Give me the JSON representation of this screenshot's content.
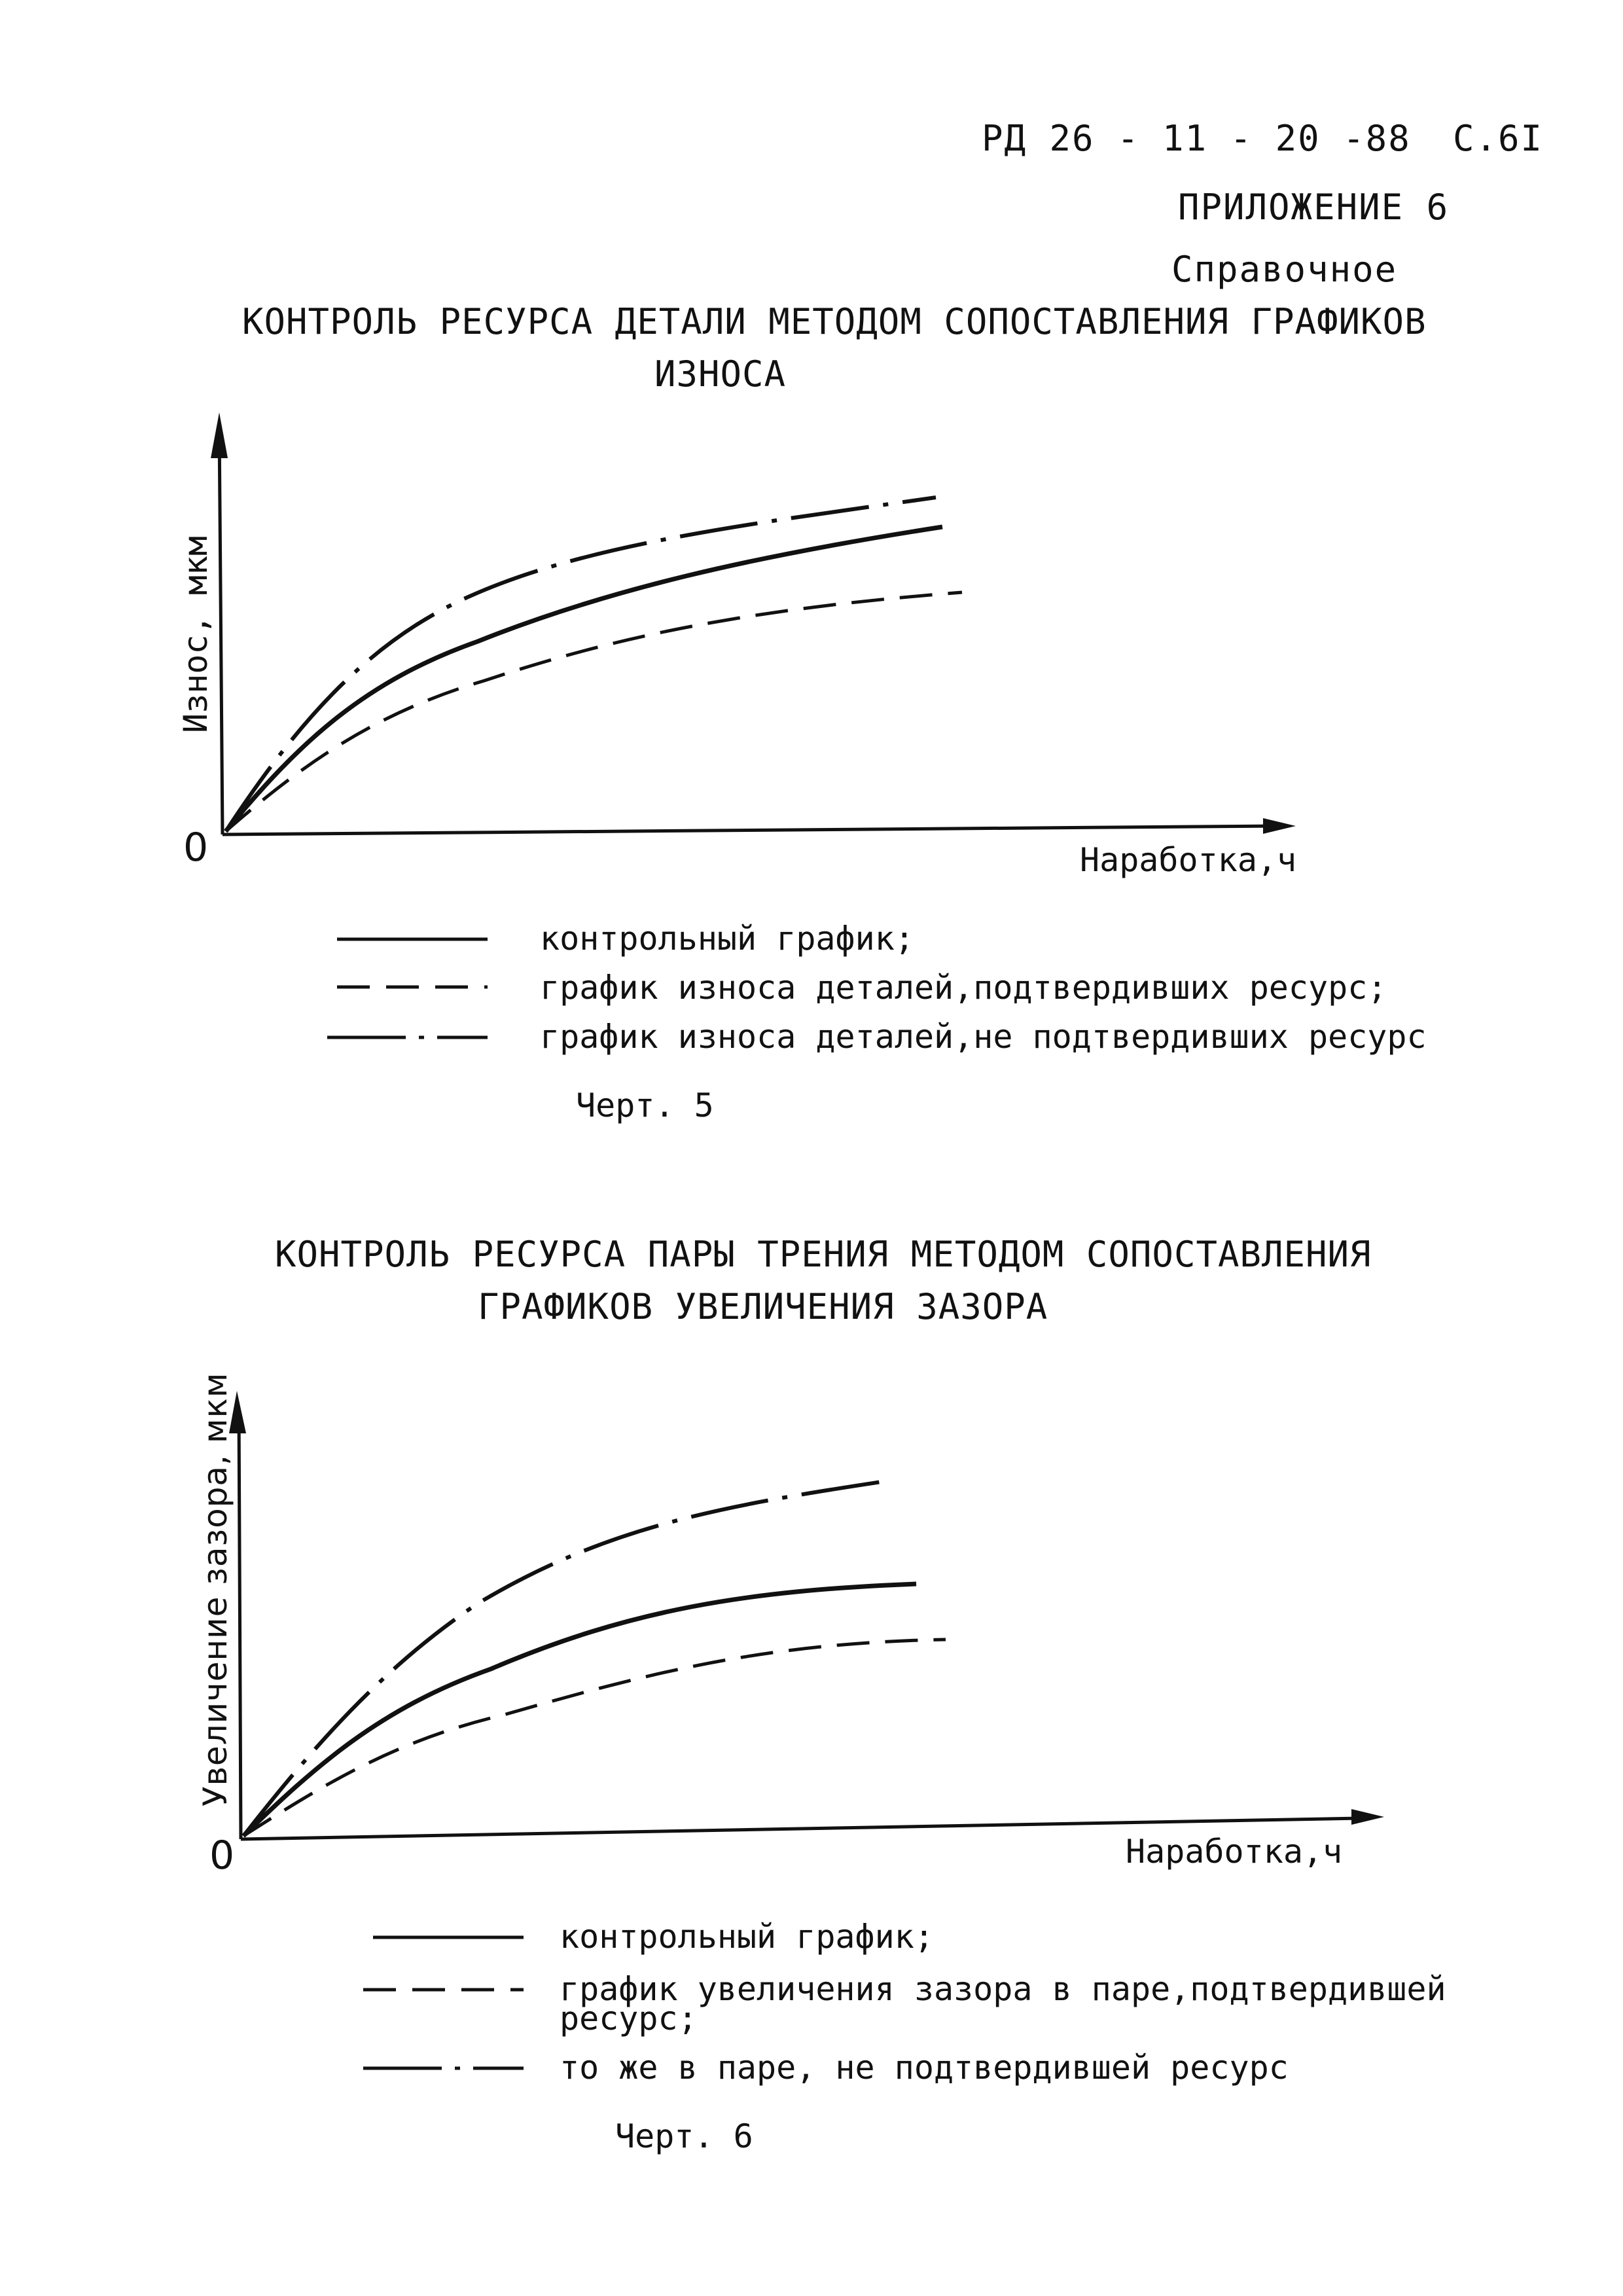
{
  "header": {
    "doc_code": "РД 26 - 11 - 20 -88",
    "page": "С.6I",
    "appendix": "ПРИЛОЖЕНИЕ 6",
    "type": "Справочное"
  },
  "chart1": {
    "title_line1": "КОНТРОЛЬ РЕСУРСА ДЕТАЛИ МЕТОДОМ СОПОСТАВЛЕНИЯ ГРАФИКОВ",
    "title_line2": "ИЗНОСА",
    "ylabel": "Износ, мкм",
    "xlabel": "Наработка,ч",
    "origin": "0",
    "legend": [
      {
        "style": "solid",
        "text": "контрольный график;"
      },
      {
        "style": "dashed",
        "text": "график износа деталей,подтвердивших ресурс;"
      },
      {
        "style": "dashdot",
        "text": "график износа деталей,не подтвердивших ресурс"
      }
    ],
    "caption": "Черт. 5"
  },
  "chart2": {
    "title_line1": "КОНТРОЛЬ РЕСУРСА ПАРЫ ТРЕНИЯ МЕТОДОМ СОПОСТАВЛЕНИЯ",
    "title_line2": "ГРАФИКОВ УВЕЛИЧЕНИЯ ЗАЗОРА",
    "ylabel": "Увеличение зазора, мкм",
    "xlabel": "Наработка,ч",
    "origin": "0",
    "legend": [
      {
        "style": "solid",
        "text": "контрольный график;"
      },
      {
        "style": "dashed",
        "text": "график увеличения зазора в паре,подтвердившей"
      },
      {
        "style": "none",
        "text": "ресурс;"
      },
      {
        "style": "dashdot",
        "text": "то же в паре, не подтвердившей ресурс"
      }
    ],
    "caption": "Черт. 6"
  },
  "chart_data": [
    {
      "type": "line",
      "title": "КОНТРОЛЬ РЕСУРСА ДЕТАЛИ МЕТОДОМ СОПОСТАВЛЕНИЯ ГРАФИКОВ ИЗНОСА",
      "xlabel": "Наработка,ч",
      "ylabel": "Износ, мкм",
      "series": [
        {
          "name": "контрольный график;",
          "style": "solid"
        },
        {
          "name": "график износа деталей,подтвердивших ресурс;",
          "style": "dashed"
        },
        {
          "name": "график износа деталей,не подтвердивших ресурс",
          "style": "dashdot"
        }
      ]
    },
    {
      "type": "line",
      "title": "КОНТРОЛЬ РЕСУРСА ПАРЫ ТРЕНИЯ МЕТОДОМ СОПОСТАВЛЕНИЯ ГРАФИКОВ УВЕЛИЧЕНИЯ ЗАЗОРА",
      "xlabel": "Наработка,ч",
      "ylabel": "Увеличение зазора, мкм",
      "series": [
        {
          "name": "контрольный график;",
          "style": "solid"
        },
        {
          "name": "график увеличения зазора в паре,подтвердившей ресурс;",
          "style": "dashed"
        },
        {
          "name": "то же в паре, не подтвердившей ресурс",
          "style": "dashdot"
        }
      ]
    }
  ]
}
